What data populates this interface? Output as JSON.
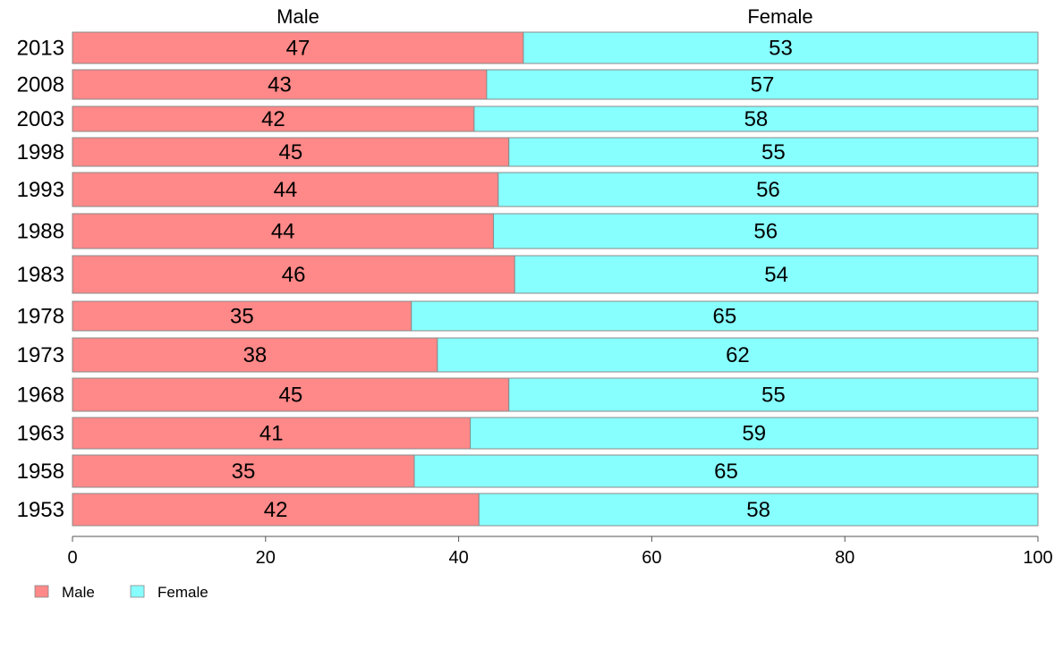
{
  "chart_data": {
    "type": "bar",
    "orientation": "horizontal",
    "stacked": true,
    "column_headers": [
      "Male",
      "Female"
    ],
    "categories": [
      "2013",
      "2008",
      "2003",
      "1998",
      "1993",
      "1988",
      "1983",
      "1978",
      "1973",
      "1968",
      "1963",
      "1958",
      "1953"
    ],
    "series": [
      {
        "name": "Male",
        "color": "#ff8888",
        "values": [
          46.7,
          42.9,
          41.6,
          45.2,
          44.1,
          43.6,
          45.8,
          35.1,
          37.8,
          45.2,
          41.2,
          35.4,
          42.1
        ],
        "labels": [
          "47",
          "43",
          "42",
          "45",
          "44",
          "44",
          "46",
          "35",
          "38",
          "45",
          "41",
          "35",
          "42"
        ]
      },
      {
        "name": "Female",
        "color": "#88ffff",
        "values": [
          53.3,
          57.1,
          58.4,
          54.8,
          55.9,
          56.4,
          54.2,
          64.9,
          62.2,
          54.8,
          58.8,
          64.6,
          57.9
        ],
        "labels": [
          "53",
          "57",
          "58",
          "55",
          "56",
          "56",
          "54",
          "65",
          "62",
          "55",
          "59",
          "65",
          "58"
        ]
      }
    ],
    "xlim": [
      0,
      100
    ],
    "xticks": [
      "0",
      "20",
      "40",
      "60",
      "80",
      "100"
    ],
    "legend": {
      "position": "bottom-left",
      "entries": [
        "Male",
        "Female"
      ]
    },
    "grid": false
  }
}
